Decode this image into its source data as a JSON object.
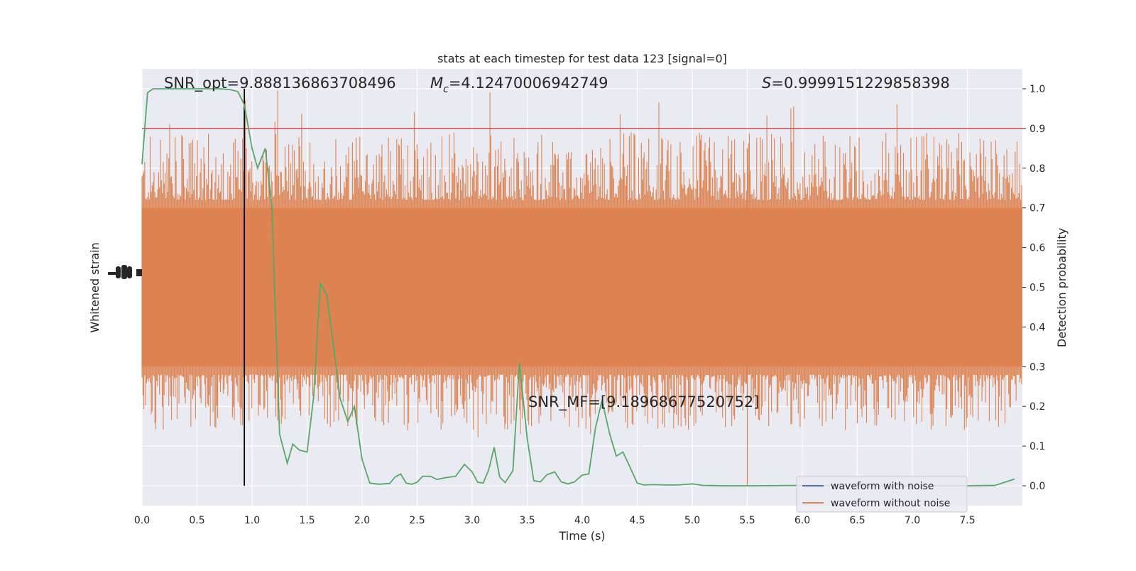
{
  "chart_data": {
    "type": "line",
    "title": "stats at each timestep for test data 123 [signal=0]",
    "xlabel": "Time (s)",
    "ylabel_left": "Whitened strain",
    "ylabel_right": "Detection probability",
    "xlim": [
      0.0,
      8.0
    ],
    "ylim_right": [
      -0.05,
      1.05
    ],
    "x_ticks": [
      "0.0",
      "0.5",
      "1.0",
      "1.5",
      "2.0",
      "2.5",
      "3.0",
      "3.5",
      "4.0",
      "4.5",
      "5.0",
      "5.5",
      "6.0",
      "6.5",
      "7.0",
      "7.5"
    ],
    "x_tick_values": [
      0.0,
      0.5,
      1.0,
      1.5,
      2.0,
      2.5,
      3.0,
      3.5,
      4.0,
      4.5,
      5.0,
      5.5,
      6.0,
      6.5,
      7.0,
      7.5
    ],
    "y_right_ticks": [
      "0.0",
      "0.1",
      "0.2",
      "0.3",
      "0.4",
      "0.5",
      "0.6",
      "0.7",
      "0.8",
      "0.9",
      "1.0"
    ],
    "y_right_tick_values": [
      0.0,
      0.1,
      0.2,
      0.3,
      0.4,
      0.5,
      0.6,
      0.7,
      0.8,
      0.9,
      1.0
    ],
    "grid": true,
    "legend_position": "lower-right",
    "legend": [
      {
        "label": "waveform with noise",
        "color": "#4c72b0"
      },
      {
        "label": "waveform without noise",
        "color": "#dd8452"
      }
    ],
    "annotations": {
      "snr_opt": "SNR_opt=9.888136863708496",
      "mc_symbol": "M",
      "mc_sub": "c",
      "mc_value": "=4.12470006942749",
      "s_symbol": "S",
      "s_value": "=0.9999151229858398",
      "snr_mf": "SNR_MF=[9.18968677520752]"
    },
    "threshold_line": {
      "y": 0.9,
      "color": "#c44e52"
    },
    "marker_line": {
      "x": 0.93,
      "color": "#000000"
    },
    "noise_band": {
      "color": "#dd8452",
      "core_low": 0.3,
      "core_high": 0.7,
      "center": 0.5
    },
    "series": [
      {
        "name": "Detection probability",
        "color": "#55a868",
        "x": [
          0.0,
          0.05,
          0.1,
          0.2,
          0.3,
          0.5,
          0.7,
          0.8,
          0.87,
          0.93,
          1.0,
          1.05,
          1.12,
          1.18,
          1.25,
          1.32,
          1.37,
          1.43,
          1.5,
          1.56,
          1.62,
          1.68,
          1.75,
          1.8,
          1.87,
          1.93,
          2.0,
          2.07,
          2.15,
          2.25,
          2.3,
          2.35,
          2.4,
          2.45,
          2.5,
          2.55,
          2.62,
          2.68,
          2.75,
          2.85,
          2.93,
          3.0,
          3.05,
          3.1,
          3.15,
          3.2,
          3.25,
          3.3,
          3.37,
          3.43,
          3.5,
          3.56,
          3.62,
          3.68,
          3.75,
          3.81,
          3.87,
          3.93,
          4.0,
          4.06,
          4.12,
          4.18,
          4.25,
          4.31,
          4.37,
          4.43,
          4.5,
          4.56,
          4.65,
          4.75,
          4.87,
          5.0,
          5.1,
          5.3,
          5.5,
          6.0,
          6.5,
          7.0,
          7.5,
          7.75,
          7.85,
          7.93
        ],
        "values": [
          0.81,
          0.99,
          1.0,
          1.0,
          1.0,
          1.0,
          1.0,
          0.998,
          0.993,
          0.96,
          0.85,
          0.8,
          0.85,
          0.7,
          0.13,
          0.057,
          0.105,
          0.09,
          0.085,
          0.225,
          0.51,
          0.48,
          0.33,
          0.22,
          0.162,
          0.2,
          0.066,
          0.007,
          0.004,
          0.006,
          0.022,
          0.03,
          0.007,
          0.004,
          0.009,
          0.024,
          0.024,
          0.016,
          0.02,
          0.024,
          0.054,
          0.035,
          0.009,
          0.007,
          0.04,
          0.097,
          0.022,
          0.008,
          0.038,
          0.31,
          0.12,
          0.013,
          0.01,
          0.028,
          0.035,
          0.01,
          0.005,
          0.01,
          0.027,
          0.03,
          0.145,
          0.215,
          0.13,
          0.075,
          0.085,
          0.05,
          0.007,
          0.002,
          0.003,
          0.002,
          0.002,
          0.005,
          0.001,
          0.0,
          0.0,
          0.001,
          0.0,
          0.0,
          0.0,
          0.001,
          0.01,
          0.017
        ]
      }
    ]
  }
}
